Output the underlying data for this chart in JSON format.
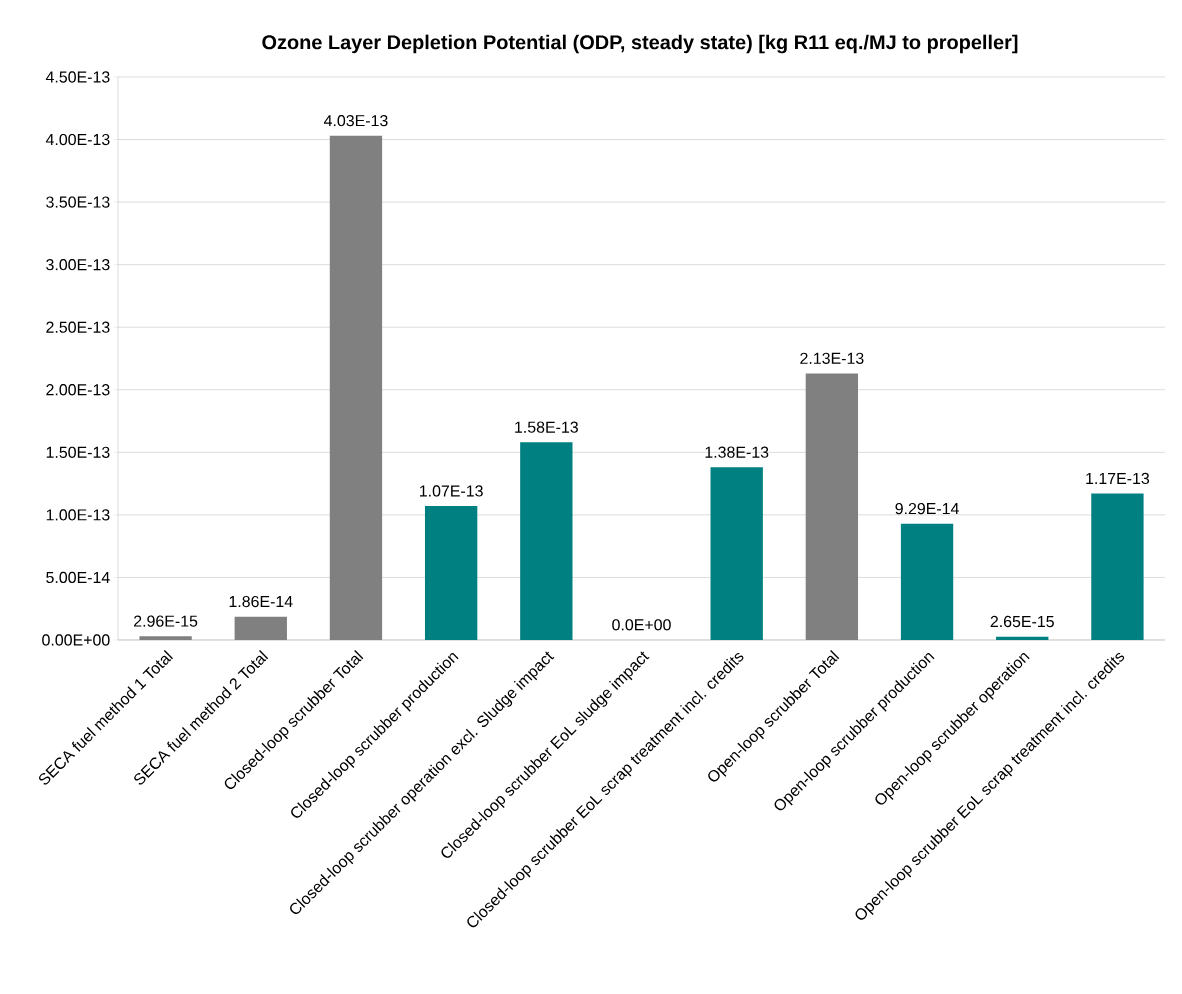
{
  "chart_data": {
    "type": "bar",
    "title": "Ozone Layer Depletion Potential (ODP, steady state) [kg R11 eq./MJ to propeller]",
    "categories": [
      "SECA fuel method 1 Total",
      "SECA fuel method 2 Total",
      "Closed-loop scrubber Total",
      "Closed-loop scrubber production",
      "Closed-loop scrubber operation excl. Sludge impact",
      "Closed-loop scrubber EoL sludge impact",
      "Closed-loop scrubber EoL scrap treatment incl. credits",
      "Open-loop scrubber Total",
      "Open-loop scrubber production",
      "Open-loop scrubber operation",
      "Open-loop scrubber EoL scrap treatment incl. credits"
    ],
    "values": [
      2.96e-15,
      1.86e-14,
      4.03e-13,
      1.07e-13,
      1.58e-13,
      0,
      1.38e-13,
      2.13e-13,
      9.29e-14,
      2.65e-15,
      1.17e-13
    ],
    "value_labels": [
      "2.96E-15",
      "1.86E-14",
      "4.03E-13",
      "1.07E-13",
      "1.58E-13",
      "0.0E+00",
      "1.38E-13",
      "2.13E-13",
      "9.29E-14",
      "2.65E-15",
      "1.17E-13"
    ],
    "colors": [
      "#808080",
      "#808080",
      "#808080",
      "#008080",
      "#008080",
      "#008080",
      "#008080",
      "#808080",
      "#008080",
      "#008080",
      "#008080"
    ],
    "ylim": [
      0,
      4.5e-13
    ],
    "yticks": [
      {
        "value": 0,
        "label": "0.00E+00"
      },
      {
        "value": 5e-14,
        "label": "5.00E-14"
      },
      {
        "value": 1e-13,
        "label": "1.00E-13"
      },
      {
        "value": 1.5e-13,
        "label": "1.50E-13"
      },
      {
        "value": 2e-13,
        "label": "2.00E-13"
      },
      {
        "value": 2.5e-13,
        "label": "2.50E-13"
      },
      {
        "value": 3e-13,
        "label": "3.00E-13"
      },
      {
        "value": 3.5e-13,
        "label": "3.50E-13"
      },
      {
        "value": 4e-13,
        "label": "4.00E-13"
      },
      {
        "value": 4.5e-13,
        "label": "4.50E-13"
      }
    ],
    "grid": "y"
  }
}
